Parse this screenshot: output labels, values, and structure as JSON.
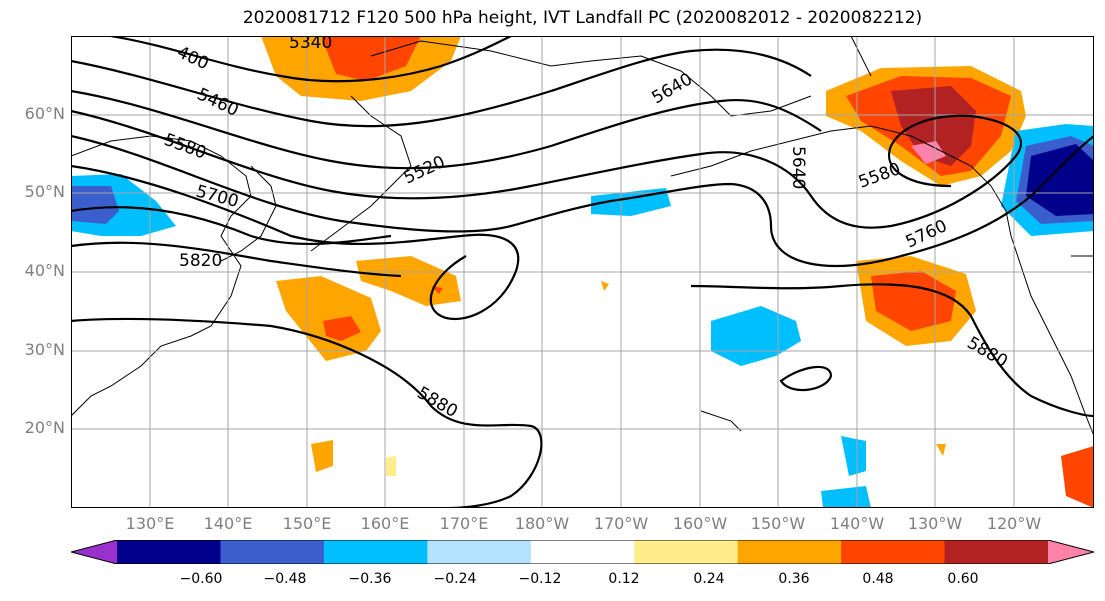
{
  "title": "2020081712 F120 500 hPa height, IVT Landfall PC (2020082012 - 2020082212)",
  "lat_labels": [
    "60°N",
    "50°N",
    "40°N",
    "30°N",
    "20°N"
  ],
  "lon_labels": [
    "130°E",
    "140°E",
    "150°E",
    "160°E",
    "170°E",
    "180°W",
    "170°W",
    "160°W",
    "150°W",
    "140°W",
    "130°W",
    "120°W"
  ],
  "contour_labels": [
    "400",
    "5340",
    "5460",
    "5520",
    "5580",
    "5640",
    "5640",
    "5580",
    "5700",
    "5760",
    "5820",
    "5880",
    "5880"
  ],
  "colorbar": {
    "tick_labels": [
      "−0.60",
      "−0.48",
      "−0.36",
      "−0.24",
      "−0.12",
      "0.12",
      "0.24",
      "0.36",
      "0.48",
      "0.60"
    ],
    "colors": [
      "#9b30d0",
      "#00008b",
      "#3a5fcd",
      "#00bfff",
      "#b3e3ff",
      "#ffffff",
      "#ffec8b",
      "#ffa500",
      "#ff4500",
      "#b22222",
      "#ff82ab"
    ]
  }
}
